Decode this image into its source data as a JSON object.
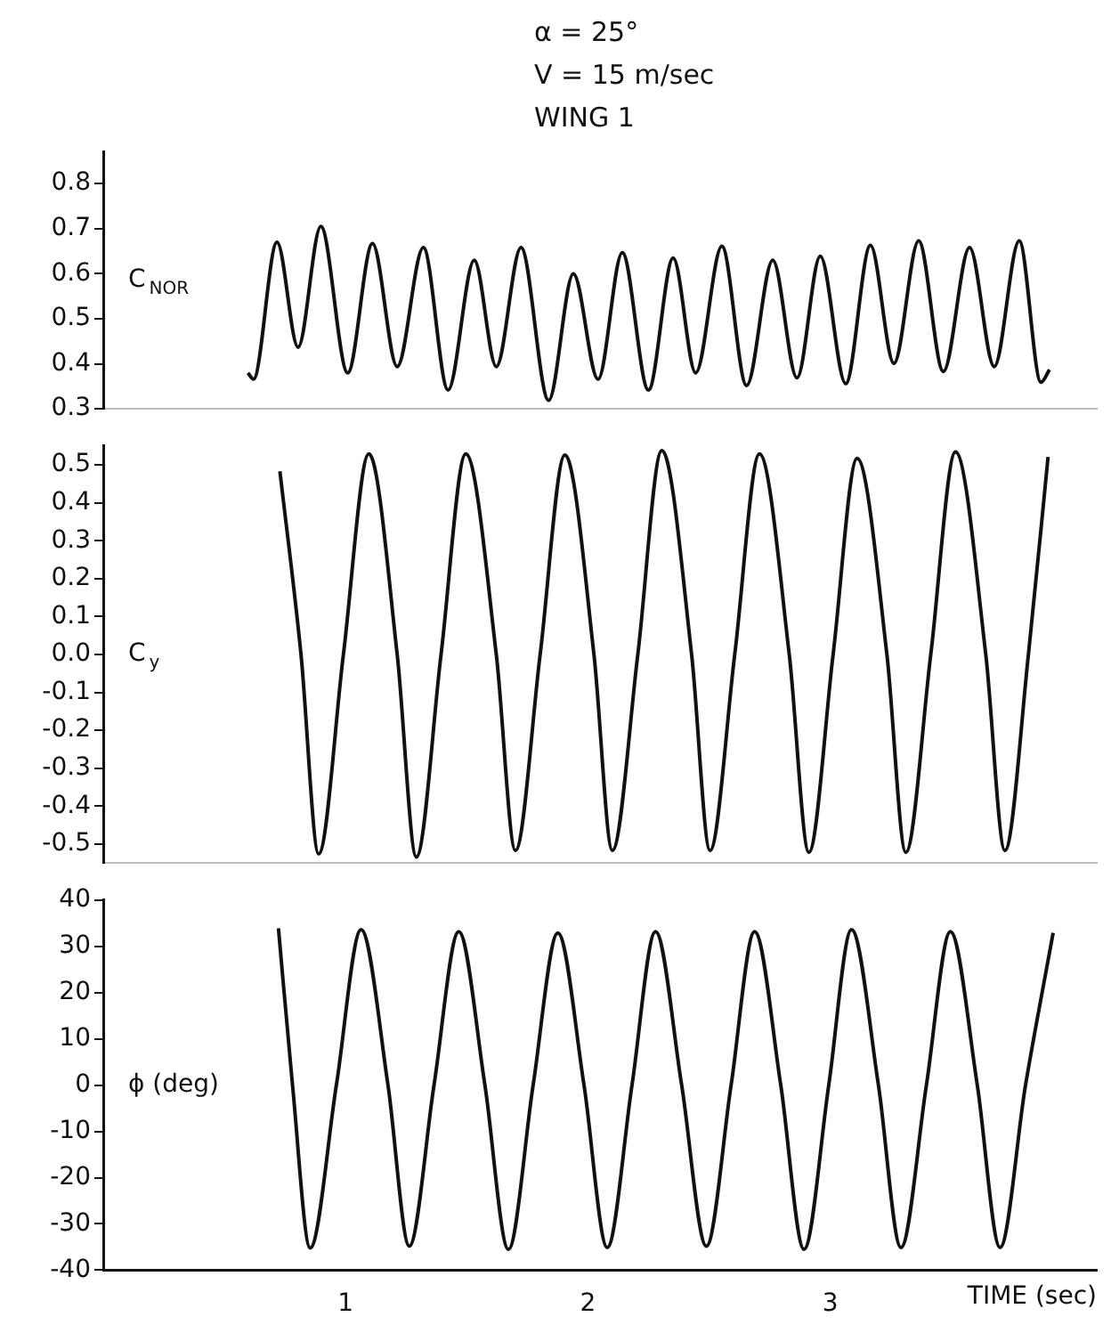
{
  "chart_data": [
    {
      "type": "line",
      "title": "α = 25°",
      "subtitle": "V = 15 m/sec",
      "annotations": [
        "WING 1"
      ],
      "ylabel": "C$_{NOR}$",
      "xlim": [
        0,
        4.1
      ],
      "ylim": [
        0.3,
        0.87
      ],
      "yticks": [
        0.3,
        0.4,
        0.5,
        0.6,
        0.7,
        0.8
      ],
      "tick_labels": "y",
      "grid": false,
      "marker": "none",
      "line_style": "solid",
      "series": [
        {
          "color": "#111111",
          "x": [
            0.597,
            0.62,
            0.717,
            0.804,
            0.898,
            1.009,
            1.111,
            1.213,
            1.321,
            1.423,
            1.531,
            1.622,
            1.724,
            1.838,
            1.94,
            2.042,
            2.142,
            2.25,
            2.352,
            2.445,
            2.553,
            2.655,
            2.763,
            2.863,
            2.959,
            3.064,
            3.166,
            3.263,
            3.365,
            3.467,
            3.575,
            3.677,
            3.78,
            3.87,
            3.905
          ],
          "values": [
            0.38,
            0.366,
            0.67,
            0.437,
            0.705,
            0.38,
            0.667,
            0.394,
            0.658,
            0.342,
            0.63,
            0.394,
            0.658,
            0.319,
            0.6,
            0.366,
            0.647,
            0.342,
            0.635,
            0.38,
            0.661,
            0.352,
            0.63,
            0.369,
            0.639,
            0.356,
            0.663,
            0.401,
            0.673,
            0.383,
            0.658,
            0.394,
            0.673,
            0.359,
            0.387
          ]
        }
      ]
    },
    {
      "type": "line",
      "ylabel": "C$_{y}$",
      "xlim": [
        0,
        4.1
      ],
      "ylim": [
        -0.55,
        0.55
      ],
      "yticks": [
        {
          "value": -0.5,
          "label": "-0.5"
        },
        {
          "value": -0.4,
          "label": "-0.4"
        },
        {
          "value": -0.3,
          "label": "-0.3"
        },
        {
          "value": -0.2,
          "label": "-0.2"
        },
        {
          "value": -0.1,
          "label": "-0.1"
        },
        {
          "value": 0,
          "label": "0.0"
        },
        0.1,
        0.2,
        0.3,
        0.4,
        0.5
      ],
      "tick_labels": "y",
      "grid": false,
      "marker": "none",
      "line_style": "solid",
      "series": [
        {
          "color": "#111111",
          "x": [
            0.729,
            0.816,
            0.889,
            0.991,
            1.096,
            1.213,
            1.292,
            1.394,
            1.496,
            1.622,
            1.701,
            1.803,
            1.905,
            2.025,
            2.101,
            2.206,
            2.305,
            2.428,
            2.504,
            2.606,
            2.708,
            2.831,
            2.912,
            3.012,
            3.111,
            3.234,
            3.312,
            3.415,
            3.517,
            3.642,
            3.721,
            3.818,
            3.899
          ],
          "values": [
            0.483,
            0,
            -0.526,
            0,
            0.529,
            0,
            -0.534,
            0,
            0.529,
            0,
            -0.517,
            0,
            0.526,
            0,
            -0.517,
            0,
            0.538,
            0,
            -0.517,
            0,
            0.529,
            0,
            -0.522,
            0,
            0.517,
            0,
            -0.522,
            0,
            0.534,
            0,
            -0.517,
            0,
            0.521
          ]
        }
      ]
    },
    {
      "type": "line",
      "ylabel": "ϕ (deg)",
      "xlabel": "TIME (sec)",
      "xlim": [
        0,
        4.1
      ],
      "xticks": [
        1,
        2,
        3
      ],
      "ylim": [
        -40,
        40
      ],
      "yticks": [
        -40,
        -30,
        -20,
        -10,
        0,
        10,
        20,
        30,
        40
      ],
      "grid": false,
      "marker": "none",
      "line_style": "solid",
      "series": [
        {
          "color": "#111111",
          "x": [
            0.723,
            0.781,
            0.854,
            0.962,
            1.064,
            1.175,
            1.263,
            1.365,
            1.467,
            1.575,
            1.672,
            1.774,
            1.876,
            1.984,
            2.08,
            2.182,
            2.279,
            2.387,
            2.489,
            2.591,
            2.688,
            2.796,
            2.892,
            2.994,
            3.088,
            3.199,
            3.292,
            3.397,
            3.496,
            3.607,
            3.701,
            3.806,
            3.92
          ],
          "values": [
            33.9,
            0,
            -35.2,
            0,
            33.6,
            0,
            -34.8,
            0,
            33.2,
            0,
            -35.5,
            0,
            32.9,
            0,
            -35.1,
            0,
            33.2,
            0,
            -34.8,
            0,
            33.2,
            0,
            -35.5,
            0,
            33.6,
            0,
            -35.1,
            0,
            33.2,
            0,
            -35.1,
            0,
            32.9
          ]
        }
      ]
    }
  ]
}
